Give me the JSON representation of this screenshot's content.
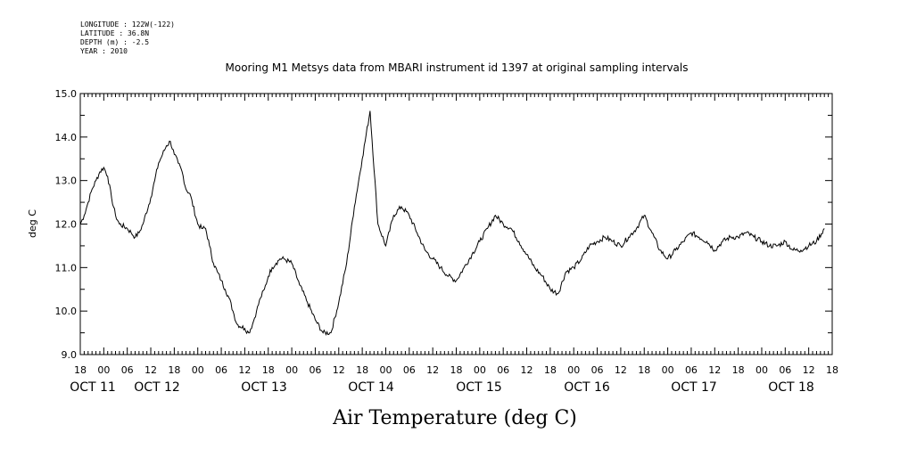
{
  "header": {
    "longitude": "LONGITUDE : 122W(-122)",
    "latitude": "LATITUDE : 36.8N",
    "depth": "DEPTH (m) : -2.5",
    "year": "YEAR : 2010"
  },
  "chart_data": {
    "type": "line",
    "title": "Mooring M1 Metsys data from MBARI instrument id 1397 at original sampling intervals",
    "xlabel": "Air Temperature (deg C)",
    "ylabel": "deg C",
    "ylim": [
      9.0,
      15.0
    ],
    "yticks": [
      "9.0",
      "10.0",
      "11.0",
      "12.0",
      "13.0",
      "14.0",
      "15.0"
    ],
    "xlim_hours": [
      18,
      210
    ],
    "x_hour_ticks": [
      "18",
      "00",
      "06",
      "12",
      "18",
      "00",
      "06",
      "12",
      "18",
      "00",
      "06",
      "12",
      "18",
      "00",
      "06",
      "12",
      "18",
      "00",
      "06",
      "12",
      "18",
      "00",
      "06",
      "12",
      "18",
      "00",
      "06",
      "12",
      "18",
      "00",
      "06",
      "12",
      "18"
    ],
    "x_date_labels": [
      "OCT 11",
      "OCT 12",
      "OCT 13",
      "OCT 14",
      "OCT 15",
      "OCT 16",
      "OCT 17",
      "OCT 18"
    ],
    "grid": false,
    "series": [
      {
        "x_hours_since_oct11_00": [
          18,
          19,
          20,
          21,
          22,
          23,
          24,
          25,
          26,
          27,
          28,
          30,
          31,
          32,
          33,
          34,
          36,
          37,
          38,
          39,
          40,
          41,
          42,
          43,
          44,
          45,
          46,
          48,
          49,
          50,
          51,
          52,
          53,
          54,
          55,
          56,
          57,
          58,
          60,
          61,
          62,
          63,
          64,
          65,
          66,
          67,
          68,
          69,
          70,
          72,
          74,
          76,
          78,
          80,
          82,
          84,
          86,
          88,
          90,
          92,
          94,
          96,
          98,
          100,
          102,
          104,
          106,
          108,
          110,
          112,
          114,
          116,
          118,
          120,
          122,
          124,
          126,
          128,
          130,
          132,
          134,
          136,
          138,
          140,
          142,
          144,
          146,
          148,
          150,
          152,
          154,
          156,
          158,
          160,
          162,
          164,
          166,
          168,
          170,
          172,
          174,
          176,
          178,
          180,
          182,
          184,
          186,
          188,
          190,
          192,
          194,
          196,
          198,
          200,
          202,
          204,
          206,
          208,
          210
        ],
        "values": [
          12.0,
          12.2,
          12.5,
          12.8,
          13.0,
          13.2,
          13.3,
          13.1,
          12.6,
          12.2,
          12.0,
          11.9,
          11.8,
          11.7,
          11.8,
          12.0,
          12.6,
          13.0,
          13.4,
          13.6,
          13.8,
          13.9,
          13.6,
          13.4,
          13.2,
          12.8,
          12.7,
          12.0,
          11.9,
          11.9,
          11.5,
          11.1,
          10.9,
          10.7,
          10.5,
          10.3,
          10.0,
          9.7,
          9.6,
          9.5,
          9.7,
          10.0,
          10.3,
          10.5,
          10.8,
          11.0,
          11.1,
          11.2,
          11.2,
          11.1,
          10.6,
          10.2,
          9.8,
          9.5,
          9.5,
          10.2,
          11.1,
          12.4,
          13.5,
          14.6,
          12.0,
          11.5,
          12.2,
          12.4,
          12.2,
          11.8,
          11.4,
          11.2,
          11.0,
          10.8,
          10.7,
          11.0,
          11.3,
          11.6,
          11.9,
          12.2,
          12.0,
          11.9,
          11.6,
          11.3,
          11.0,
          10.8,
          10.5,
          10.4,
          10.9,
          11.0,
          11.2,
          11.5,
          11.6,
          11.7,
          11.6,
          11.5,
          11.7,
          11.9,
          12.2,
          11.8,
          11.4,
          11.2,
          11.4,
          11.6,
          11.8,
          11.7,
          11.6,
          11.4,
          11.6,
          11.7,
          11.7,
          11.8,
          11.7,
          11.6,
          11.5,
          11.5,
          11.6,
          11.4,
          11.4,
          11.5,
          11.6,
          11.9
        ]
      }
    ]
  }
}
